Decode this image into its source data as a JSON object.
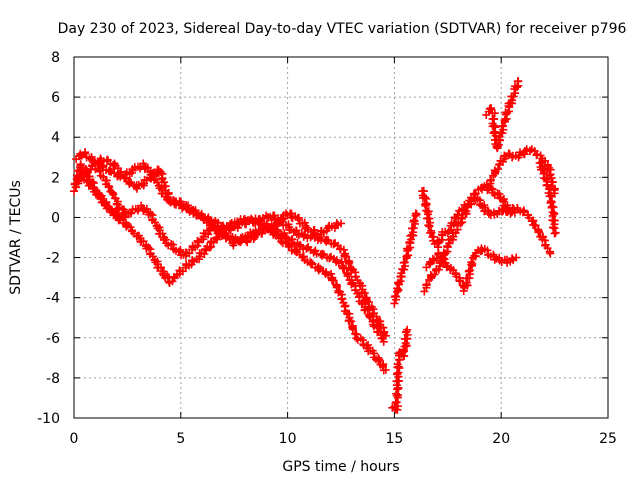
{
  "chart_data": {
    "type": "scatter",
    "title": "Day 230 of 2023, Sidereal Day-to-day VTEC variation (SDTVAR) for receiver p796",
    "xlabel": "GPS time / hours",
    "ylabel": "SDTVAR / TECUs",
    "xlim": [
      0,
      25
    ],
    "ylim": [
      -10,
      8
    ],
    "x_ticks": [
      0,
      5,
      10,
      15,
      20,
      25
    ],
    "y_ticks": [
      -10,
      -8,
      -6,
      -4,
      -2,
      0,
      2,
      4,
      6,
      8
    ],
    "x_tick_labels": [
      "0",
      "5",
      "10",
      "15",
      "20",
      "25"
    ],
    "y_tick_labels": [
      "-10",
      "-8",
      "-6",
      "-4",
      "-2",
      "0",
      "2",
      "4",
      "6",
      "8"
    ],
    "grid": true,
    "marker": "+",
    "series_color": "#ff0000",
    "series": [
      {
        "x": [
          0.0,
          0.3,
          0.6,
          1.0,
          1.5,
          2.0,
          2.5,
          3.0,
          3.4,
          3.8,
          4.2,
          4.5,
          4.9,
          5.3,
          5.8,
          6.2,
          6.6,
          7.0,
          7.5,
          8.0,
          8.5,
          9.0,
          9.5,
          10.0,
          10.5,
          11.0,
          11.5,
          12.0,
          12.4,
          12.8,
          13.2,
          13.6,
          14.0,
          14.3,
          14.6
        ],
        "y": [
          1.4,
          2.6,
          2.2,
          1.4,
          0.6,
          0.0,
          -0.4,
          -1.0,
          -1.4,
          -2.2,
          -2.8,
          -3.2,
          -2.8,
          -2.4,
          -2.0,
          -1.6,
          -1.1,
          -0.6,
          -0.3,
          -0.1,
          -0.2,
          -0.4,
          -0.9,
          -1.4,
          -1.8,
          -2.2,
          -2.6,
          -2.9,
          -3.6,
          -4.8,
          -5.9,
          -6.3,
          -6.8,
          -7.2,
          -7.6
        ]
      },
      {
        "x": [
          0.1,
          0.4,
          0.8,
          1.2,
          1.7,
          2.2,
          2.7,
          3.1,
          3.5,
          3.9,
          4.3,
          4.8,
          5.2,
          5.6,
          6.0,
          6.5,
          7.0,
          7.5,
          8.0,
          8.5,
          9.0,
          9.5,
          10.0,
          10.5,
          11.0,
          11.5,
          12.0,
          12.5,
          13.0,
          13.5,
          14.0,
          14.5
        ],
        "y": [
          1.6,
          2.1,
          1.6,
          1.0,
          0.4,
          0.1,
          0.3,
          0.5,
          0.3,
          -0.5,
          -1.2,
          -1.6,
          -1.9,
          -1.5,
          -1.0,
          -0.5,
          -0.9,
          -1.3,
          -1.0,
          -0.7,
          -0.5,
          -0.7,
          -1.0,
          -1.4,
          -1.6,
          -1.8,
          -2.0,
          -2.3,
          -3.2,
          -4.3,
          -5.2,
          -6.2
        ]
      },
      {
        "x": [
          0.1,
          0.5,
          0.9,
          1.3,
          1.8,
          2.3,
          2.8,
          3.2,
          3.6,
          4.0,
          4.4,
          4.8,
          5.2,
          5.7,
          6.2,
          6.7,
          7.2,
          7.7,
          8.2,
          8.7,
          9.2,
          9.7,
          10.2,
          10.7,
          11.2,
          11.7,
          12.2,
          12.6,
          13.0,
          13.4,
          13.8,
          14.2,
          14.6
        ],
        "y": [
          3.0,
          3.2,
          2.8,
          2.6,
          2.2,
          2.0,
          2.4,
          2.6,
          2.3,
          1.5,
          0.9,
          0.7,
          0.5,
          0.2,
          0.0,
          -0.3,
          -0.6,
          -0.4,
          -0.2,
          -0.1,
          0.1,
          -0.2,
          -0.6,
          -0.9,
          -1.0,
          -1.1,
          -1.3,
          -1.7,
          -2.5,
          -3.4,
          -4.3,
          -5.1,
          -5.9
        ]
      },
      {
        "x": [
          0.2,
          0.6,
          1.0,
          1.5,
          2.0,
          2.5,
          3.0,
          3.5,
          4.0,
          4.5,
          5.0,
          5.5,
          6.0,
          6.5,
          7.0,
          7.5,
          8.0,
          8.5,
          9.0,
          9.5,
          10.0,
          10.5,
          11.0,
          11.5,
          12.0,
          12.5
        ],
        "y": [
          1.9,
          2.2,
          2.8,
          2.9,
          2.5,
          1.8,
          1.5,
          1.9,
          2.4,
          0.8,
          0.7,
          0.4,
          0.0,
          -0.4,
          -0.8,
          -1.1,
          -1.2,
          -0.9,
          -0.6,
          -0.3,
          0.2,
          -0.1,
          -0.6,
          -0.8,
          -0.5,
          -0.3
        ]
      },
      {
        "x": [
          1.0,
          1.2,
          1.4,
          1.6,
          1.8,
          2.0,
          2.1,
          2.3,
          2.4
        ],
        "y": [
          2.5,
          2.3,
          2.0,
          1.6,
          1.2,
          0.8,
          0.5,
          0.3,
          0.0
        ]
      },
      {
        "x": [
          15.0,
          15.2,
          15.4,
          15.6,
          15.8,
          16.0
        ],
        "y": [
          -4.2,
          -3.4,
          -2.6,
          -1.8,
          -1.0,
          0.2
        ]
      },
      {
        "x": [
          14.9,
          15.0,
          15.1,
          15.2,
          15.3,
          15.4,
          15.5,
          15.6
        ],
        "y": [
          -9.4,
          -9.5,
          -9.6,
          -7.0,
          -6.8,
          -6.9,
          -6.6,
          -5.6
        ]
      },
      {
        "x": [
          16.3,
          16.5,
          16.7,
          17.0,
          17.3,
          17.6,
          18.0,
          18.4,
          18.8,
          19.2,
          19.6,
          20.0,
          20.4,
          20.8,
          21.2,
          21.6,
          22.0,
          22.3
        ],
        "y": [
          1.4,
          0.6,
          -0.8,
          -1.4,
          -0.8,
          -0.6,
          0.2,
          0.6,
          1.2,
          1.6,
          1.3,
          1.0,
          0.2,
          0.4,
          0.2,
          -0.4,
          -1.2,
          -1.8
        ]
      },
      {
        "x": [
          16.5,
          16.8,
          17.1,
          17.4,
          17.7,
          18.0,
          18.3,
          18.7,
          19.1,
          19.5,
          19.9,
          20.3,
          20.7
        ],
        "y": [
          -2.4,
          -2.2,
          -1.8,
          -2.4,
          -2.6,
          -3.0,
          -3.6,
          -2.0,
          -1.5,
          -1.9,
          -2.1,
          -2.2,
          -2.0
        ]
      },
      {
        "x": [
          16.4,
          16.7,
          17.0,
          17.3,
          17.6,
          17.9,
          18.2,
          18.5,
          18.8,
          19.1,
          19.4,
          19.7,
          20.0,
          20.3,
          20.6
        ],
        "y": [
          -3.6,
          -3.0,
          -2.6,
          -2.0,
          -1.2,
          -0.6,
          0.0,
          0.6,
          1.0,
          0.6,
          0.2,
          0.2,
          0.3,
          0.4,
          0.4
        ]
      },
      {
        "x": [
          19.4,
          19.7,
          20.0,
          20.3,
          20.6,
          21.0,
          21.4,
          21.8,
          22.2,
          22.5
        ],
        "y": [
          1.6,
          2.2,
          2.8,
          3.2,
          3.0,
          3.2,
          3.4,
          3.0,
          2.6,
          1.2
        ]
      },
      {
        "x": [
          19.6,
          19.8,
          20.0,
          20.2,
          20.4,
          20.6,
          20.8
        ],
        "y": [
          5.0,
          3.4,
          4.2,
          5.0,
          5.6,
          6.2,
          6.8
        ]
      },
      {
        "x": [
          19.3,
          19.5,
          19.7
        ],
        "y": [
          5.2,
          5.4,
          5.2
        ]
      },
      {
        "x": [
          21.8,
          22.0,
          22.2,
          22.4,
          22.5
        ],
        "y": [
          2.8,
          2.2,
          1.6,
          0.6,
          -0.8
        ]
      }
    ]
  }
}
